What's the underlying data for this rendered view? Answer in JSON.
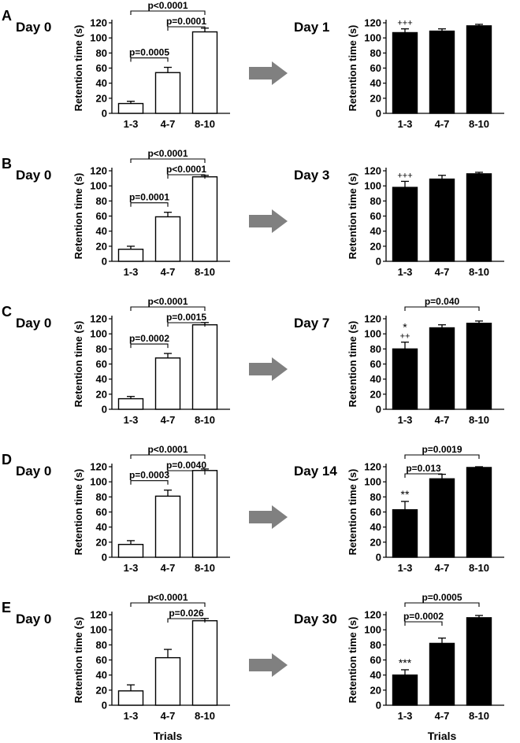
{
  "figure": {
    "x_title": "Trials",
    "arrow_color": "#808080",
    "bar_colors": {
      "open": "#ffffff",
      "filled": "#000000"
    }
  },
  "chart_data": [
    {
      "panel": "A",
      "charts": [
        {
          "type": "bar",
          "title": "Day 0",
          "style": "open",
          "ylabel": "Retention time (s)",
          "ylim": [
            0,
            120
          ],
          "yticks": [
            "0",
            "20",
            "40",
            "60",
            "80",
            "100",
            "120"
          ],
          "categories": [
            "1-3",
            "4-7",
            "8-10"
          ],
          "values": [
            13,
            54,
            108
          ],
          "errors": [
            3,
            7,
            5
          ],
          "marks": [
            "",
            "",
            ""
          ],
          "brackets": [
            {
              "from": 0,
              "to": 1,
              "label": "p=0.0005"
            },
            {
              "from": 1,
              "to": 2,
              "label": "p=0.0001"
            },
            {
              "from": 0,
              "to": 2,
              "label": "p<0.0001"
            }
          ]
        },
        {
          "type": "bar",
          "title": "Day 1",
          "style": "filled",
          "ylabel": "Retention time (s)",
          "ylim": [
            0,
            120
          ],
          "yticks": [
            "0",
            "20",
            "40",
            "60",
            "80",
            "100",
            "120"
          ],
          "categories": [
            "1-3",
            "4-7",
            "8-10"
          ],
          "values": [
            107,
            109,
            116
          ],
          "errors": [
            5,
            3,
            2
          ],
          "marks": [
            "+++",
            "",
            ""
          ],
          "brackets": []
        }
      ]
    },
    {
      "panel": "B",
      "charts": [
        {
          "type": "bar",
          "title": "Day 0",
          "style": "open",
          "ylabel": "Retention time (s)",
          "ylim": [
            0,
            120
          ],
          "yticks": [
            "0",
            "20",
            "40",
            "60",
            "80",
            "100",
            "120"
          ],
          "categories": [
            "1-3",
            "4-7",
            "8-10"
          ],
          "values": [
            16,
            59,
            112
          ],
          "errors": [
            4,
            6,
            2
          ],
          "marks": [
            "",
            "",
            ""
          ],
          "brackets": [
            {
              "from": 0,
              "to": 1,
              "label": "p=0.0001"
            },
            {
              "from": 1,
              "to": 2,
              "label": "p<0.0001"
            },
            {
              "from": 0,
              "to": 2,
              "label": "p<0.0001"
            }
          ]
        },
        {
          "type": "bar",
          "title": "Day 3",
          "style": "filled",
          "ylabel": "Retention time (s)",
          "ylim": [
            0,
            120
          ],
          "yticks": [
            "0",
            "20",
            "40",
            "60",
            "80",
            "100",
            "120"
          ],
          "categories": [
            "1-3",
            "4-7",
            "8-10"
          ],
          "values": [
            98,
            109,
            116
          ],
          "errors": [
            8,
            5,
            2
          ],
          "marks": [
            "+++",
            "",
            ""
          ],
          "brackets": []
        }
      ]
    },
    {
      "panel": "C",
      "charts": [
        {
          "type": "bar",
          "title": "Day 0",
          "style": "open",
          "ylabel": "Retention time (s)",
          "ylim": [
            0,
            120
          ],
          "yticks": [
            "0",
            "20",
            "40",
            "60",
            "80",
            "100",
            "120"
          ],
          "categories": [
            "1-3",
            "4-7",
            "8-10"
          ],
          "values": [
            14,
            68,
            112
          ],
          "errors": [
            3,
            6,
            3
          ],
          "marks": [
            "",
            "",
            ""
          ],
          "brackets": [
            {
              "from": 0,
              "to": 1,
              "label": "p=0.0002"
            },
            {
              "from": 1,
              "to": 2,
              "label": "p=0.0015"
            },
            {
              "from": 0,
              "to": 2,
              "label": "p<0.0001"
            }
          ]
        },
        {
          "type": "bar",
          "title": "Day 7",
          "style": "filled",
          "ylabel": "Retention time (s)",
          "ylim": [
            0,
            120
          ],
          "yticks": [
            "0",
            "20",
            "40",
            "60",
            "80",
            "100",
            "120"
          ],
          "categories": [
            "1-3",
            "4-7",
            "8-10"
          ],
          "values": [
            80,
            108,
            114
          ],
          "errors": [
            9,
            4,
            3
          ],
          "marks": [
            "*\n++",
            "",
            ""
          ],
          "brackets": [
            {
              "from": 0,
              "to": 2,
              "label": "p=0.040"
            }
          ]
        }
      ]
    },
    {
      "panel": "D",
      "charts": [
        {
          "type": "bar",
          "title": "Day 0",
          "style": "open",
          "ylabel": "Retention time (s)",
          "ylim": [
            0,
            120
          ],
          "yticks": [
            "0",
            "20",
            "40",
            "60",
            "80",
            "100",
            "120"
          ],
          "categories": [
            "1-3",
            "4-7",
            "8-10"
          ],
          "values": [
            17,
            81,
            115
          ],
          "errors": [
            5,
            8,
            2
          ],
          "marks": [
            "",
            "",
            ""
          ],
          "brackets": [
            {
              "from": 0,
              "to": 1,
              "label": "p=0.0003"
            },
            {
              "from": 1,
              "to": 2,
              "label": "p=0.0040"
            },
            {
              "from": 0,
              "to": 2,
              "label": "p<0.0001"
            }
          ]
        },
        {
          "type": "bar",
          "title": "Day 14",
          "style": "filled",
          "ylabel": "Retention time (s)",
          "ylim": [
            0,
            120
          ],
          "yticks": [
            "0",
            "20",
            "40",
            "60",
            "80",
            "100",
            "120"
          ],
          "categories": [
            "1-3",
            "4-7",
            "8-10"
          ],
          "values": [
            63,
            104,
            119
          ],
          "errors": [
            11,
            6,
            1
          ],
          "marks": [
            "**",
            "",
            ""
          ],
          "brackets": [
            {
              "from": 0,
              "to": 1,
              "label": "p=0.013"
            },
            {
              "from": 0,
              "to": 2,
              "label": "p=0.0019"
            }
          ]
        }
      ]
    },
    {
      "panel": "E",
      "charts": [
        {
          "type": "bar",
          "title": "Day 0",
          "style": "open",
          "ylabel": "Retention time (s)",
          "ylim": [
            0,
            120
          ],
          "yticks": [
            "0",
            "20",
            "40",
            "60",
            "80",
            "100",
            "120"
          ],
          "categories": [
            "1-3",
            "4-7",
            "8-10"
          ],
          "values": [
            19,
            63,
            112
          ],
          "errors": [
            8,
            11,
            3
          ],
          "marks": [
            "",
            "",
            ""
          ],
          "brackets": [
            {
              "from": 1,
              "to": 2,
              "label": "p=0.026"
            },
            {
              "from": 0,
              "to": 2,
              "label": "p<0.0001"
            }
          ]
        },
        {
          "type": "bar",
          "title": "Day 30",
          "style": "filled",
          "ylabel": "Retention time (s)",
          "ylim": [
            0,
            120
          ],
          "yticks": [
            "0",
            "20",
            "40",
            "60",
            "80",
            "100",
            "120"
          ],
          "categories": [
            "1-3",
            "4-7",
            "8-10"
          ],
          "values": [
            40,
            82,
            116
          ],
          "errors": [
            7,
            7,
            3
          ],
          "marks": [
            "***",
            "",
            ""
          ],
          "brackets": [
            {
              "from": 0,
              "to": 1,
              "label": "p=0.0002"
            },
            {
              "from": 0,
              "to": 2,
              "label": "p=0.0005"
            }
          ]
        }
      ]
    }
  ]
}
